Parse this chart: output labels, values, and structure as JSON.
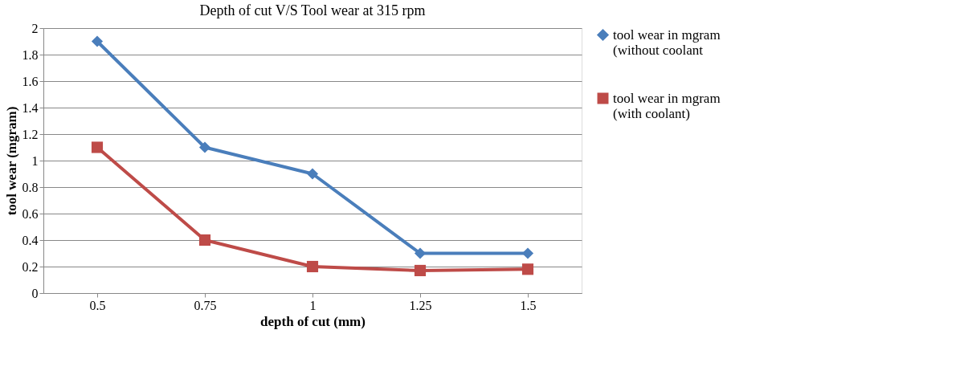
{
  "chart_data": {
    "type": "line",
    "title": "Depth of cut V/S Tool wear  at 315 rpm",
    "xlabel": "depth of cut (mm)",
    "ylabel": "tool wear (mgram)",
    "categories": [
      "0.5",
      "0.75",
      "1",
      "1.25",
      "1.5"
    ],
    "series": [
      {
        "name": "tool wear in mgram (without coolant",
        "color": "#4a7ebb",
        "marker": "diamond",
        "values": [
          1.9,
          1.1,
          0.9,
          0.3,
          0.3
        ]
      },
      {
        "name": "tool wear in mgram (with coolant)",
        "color": "#be4b48",
        "marker": "square",
        "values": [
          1.1,
          0.4,
          0.2,
          0.17,
          0.18
        ]
      }
    ],
    "ylim": [
      0,
      2
    ],
    "yticks": [
      0,
      0.2,
      0.4,
      0.6,
      0.8,
      1,
      1.2,
      1.4,
      1.6,
      1.8,
      2
    ],
    "grid": "y",
    "legend": "right",
    "line_style": "solid"
  }
}
